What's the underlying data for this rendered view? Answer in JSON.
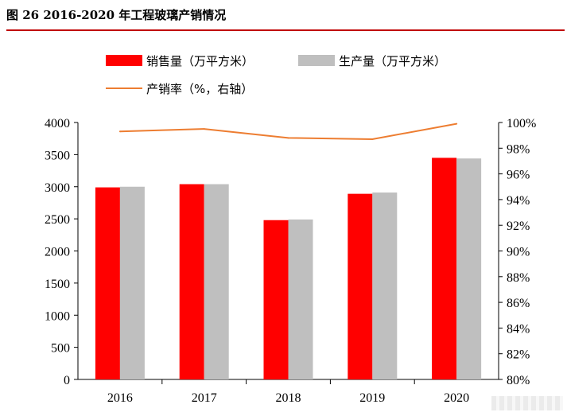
{
  "figure_title": "图 26 2016-2020 年工程玻璃产销情况",
  "colors": {
    "sales": "#ff0000",
    "production": "#bfbfbf",
    "rate": "#ed7d31",
    "title_rule": "#c00000"
  },
  "chart_data": {
    "type": "bar",
    "categories": [
      "2016",
      "2017",
      "2018",
      "2019",
      "2020"
    ],
    "series": [
      {
        "name": "销售量（万平方米）",
        "type": "bar",
        "axis": "left",
        "values": [
          2990,
          3040,
          2480,
          2890,
          3450
        ]
      },
      {
        "name": "生产量（万平方米）",
        "type": "bar",
        "axis": "left",
        "values": [
          3000,
          3040,
          2490,
          2910,
          3440
        ]
      },
      {
        "name": "产销率（%，右轴）",
        "type": "line",
        "axis": "right",
        "values": [
          99.3,
          99.5,
          98.8,
          98.7,
          99.9
        ]
      }
    ],
    "y_left": {
      "ylim": [
        0,
        4000
      ],
      "ticks": [
        "0",
        "500",
        "1000",
        "1500",
        "2000",
        "2500",
        "3000",
        "3500",
        "4000"
      ]
    },
    "y_right": {
      "ylim": [
        80,
        100
      ],
      "ticks": [
        "80%",
        "82%",
        "84%",
        "86%",
        "88%",
        "90%",
        "92%",
        "94%",
        "96%",
        "98%",
        "100%"
      ]
    },
    "grid": false,
    "legend_position": "top"
  }
}
